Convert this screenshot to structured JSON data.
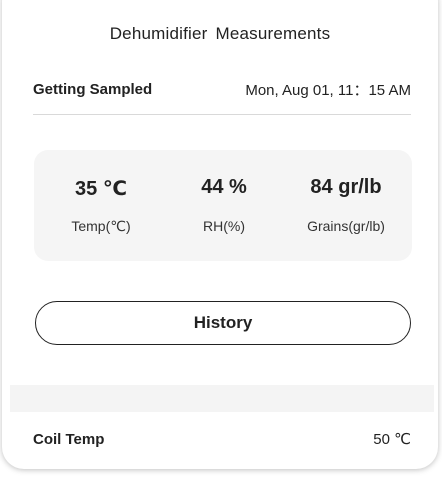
{
  "header": {
    "title": "Dehumidifier  Measurements"
  },
  "sample": {
    "label": "Getting Sampled",
    "timestamp": "Mon, Aug 01, 11：15 AM"
  },
  "metrics": [
    {
      "value": "35 ℃",
      "label": "Temp(℃)"
    },
    {
      "value": "44 %",
      "label": "RH(%)"
    },
    {
      "value": "84 gr/lb",
      "label": "Grains(gr/lb)"
    }
  ],
  "actions": {
    "history_label": "History"
  },
  "coil": {
    "label": "Coil Temp",
    "value": "50 ℃"
  }
}
